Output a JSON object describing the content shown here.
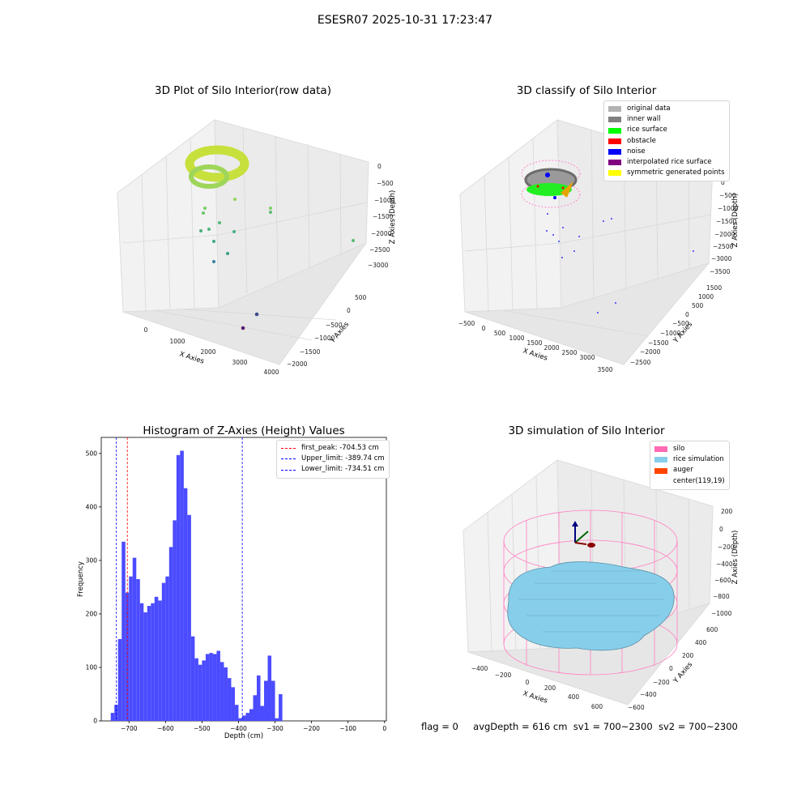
{
  "suptitle": "ESESR07 2025-10-31 17:23:47",
  "panels": {
    "raw": {
      "title": "3D Plot of Silo Interior(row data)",
      "xlabel": "X Axies",
      "ylabel": "Y Axies",
      "zlabel": "Z Axies (Depth)",
      "xticks": [
        "0",
        "1000",
        "2000",
        "3000",
        "4000"
      ],
      "yticks": [
        "500",
        "0",
        "−500",
        "−1000",
        "−1500",
        "−2000"
      ],
      "zticks": [
        "0",
        "−500",
        "−1000",
        "−1500",
        "−2000",
        "−2500",
        "−3000"
      ]
    },
    "classify": {
      "title": "3D classify of Silo Interior",
      "xlabel": "X Axies",
      "ylabel": "Y Axies",
      "zlabel": "Z Axies (Depth)",
      "xticks": [
        "−500",
        "0",
        "500",
        "1000",
        "1500",
        "2000",
        "2500",
        "3000",
        "3500"
      ],
      "yticks": [
        "1500",
        "1000",
        "500",
        "0",
        "−500",
        "−1000",
        "−1500",
        "−2000",
        "−2500"
      ],
      "zticks": [
        "0",
        "−500",
        "−1000",
        "−1500",
        "−2000",
        "−2500",
        "−3000",
        "−3500"
      ],
      "legend": [
        {
          "label": "original data",
          "color": "#b3b3b3"
        },
        {
          "label": "inner wall",
          "color": "#808080"
        },
        {
          "label": "rice surface",
          "color": "#00ff00"
        },
        {
          "label": "obstacle",
          "color": "#ff0000"
        },
        {
          "label": "noise",
          "color": "#0000ff"
        },
        {
          "label": "interpolated rice surface",
          "color": "#800080"
        },
        {
          "label": "symmetric generated points",
          "color": "#ffff00"
        }
      ]
    },
    "simulation": {
      "title": "3D simulation of Silo Interior",
      "xlabel": "X Axies",
      "ylabel": "Y Axies",
      "zlabel": "Z Axies (Depth)",
      "xticks": [
        "−400",
        "−200",
        "0",
        "200",
        "400",
        "600"
      ],
      "yticks": [
        "600",
        "400",
        "200",
        "0",
        "−200",
        "−400",
        "−600"
      ],
      "zticks": [
        "200",
        "0",
        "−200",
        "−400",
        "−600",
        "−800",
        "−1000"
      ],
      "legend": [
        {
          "label": "silo",
          "color": "#ff69b4"
        },
        {
          "label": "rice simulation",
          "color": "#87ceeb"
        },
        {
          "label": "auger",
          "color": "#ff4500"
        },
        {
          "label": "center(119,19)",
          "color": "#ffffff"
        }
      ]
    }
  },
  "footer": {
    "flag": "flag = 0",
    "avg": "avgDepth = 616 cm",
    "sv1": "sv1 = 700~2300",
    "sv2": "sv2 = 700~2300"
  },
  "chart_data": {
    "type": "bar",
    "title": "Histogram of Z-Axies (Height) Values",
    "xlabel": "Depth (cm)",
    "ylabel": "Frequency",
    "xlim": [
      -776,
      5
    ],
    "ylim": [
      0,
      530
    ],
    "xticks": [
      -700,
      -600,
      -500,
      -400,
      -300,
      -200,
      -100,
      0
    ],
    "yticks": [
      0,
      100,
      200,
      300,
      400,
      500
    ],
    "bin_start": -750,
    "bin_width": 10,
    "bar_color": "#4b4bff",
    "values": [
      15,
      30,
      153,
      335,
      240,
      270,
      305,
      265,
      220,
      203,
      215,
      220,
      232,
      225,
      258,
      270,
      325,
      375,
      497,
      505,
      435,
      385,
      158,
      117,
      105,
      113,
      125,
      127,
      125,
      131,
      110,
      100,
      80,
      63,
      30,
      5,
      10,
      15,
      22,
      48,
      85,
      28,
      75,
      122,
      75,
      5,
      50
    ],
    "vlines": [
      {
        "label": "first_peak: -704.53 cm",
        "x": -704.53,
        "color": "#ff0000"
      },
      {
        "label": "Upper_limit: -389.74 cm",
        "x": -389.74,
        "color": "#0000ff"
      },
      {
        "label": "Lower_limit: -734.51 cm",
        "x": -734.51,
        "color": "#0000ff"
      }
    ]
  }
}
